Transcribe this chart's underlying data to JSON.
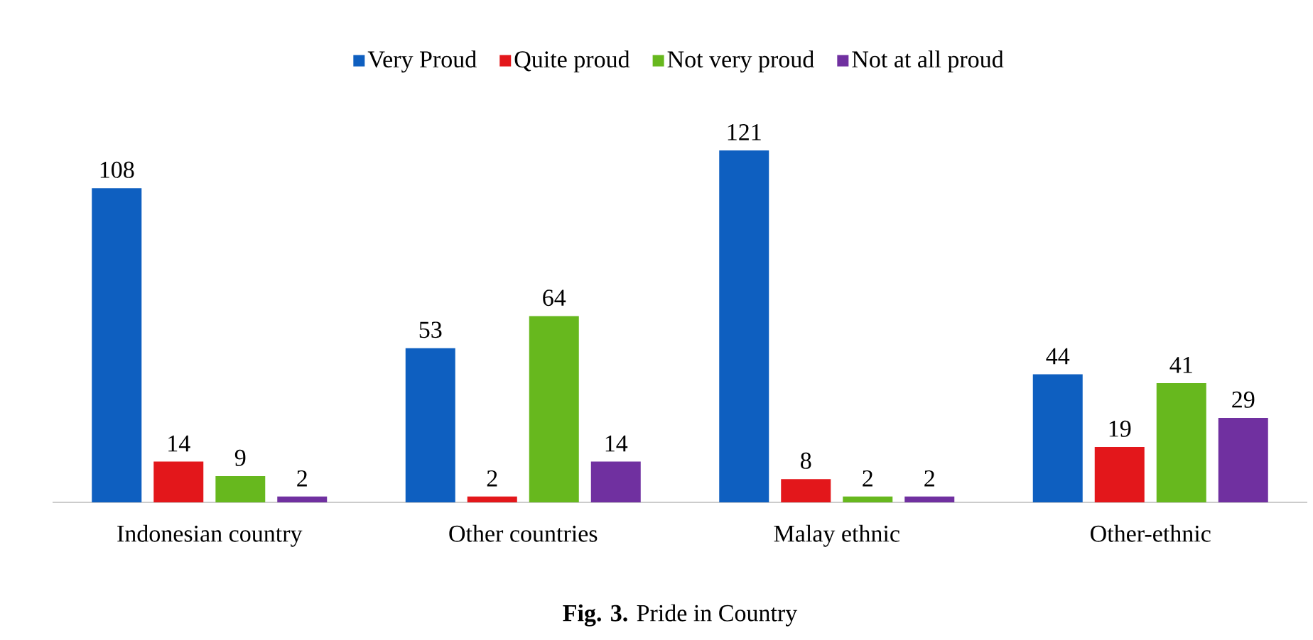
{
  "chart_data": {
    "type": "bar",
    "title": "**Fig. 3.** Pride in Country",
    "categories": [
      "Indonesian country",
      "Other countries",
      "Malay ethnic",
      "Other-ethnic"
    ],
    "series": [
      {
        "name": "Very Proud",
        "color": "#0e5fc0",
        "values": [
          108,
          53,
          121,
          44
        ]
      },
      {
        "name": "Quite proud",
        "color": "#e3171b",
        "values": [
          14,
          2,
          8,
          19
        ]
      },
      {
        "name": "Not very proud",
        "color": "#67b81e",
        "values": [
          9,
          64,
          2,
          41
        ]
      },
      {
        "name": "Not at all proud",
        "color": "#7030a0",
        "values": [
          2,
          14,
          2,
          29
        ]
      }
    ],
    "data_labels": true,
    "legend": "top"
  }
}
